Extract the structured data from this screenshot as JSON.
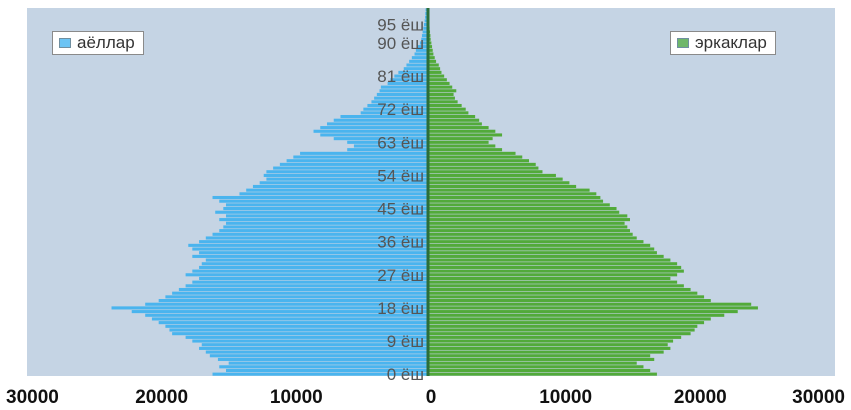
{
  "chart_data": {
    "type": "bar",
    "orientation": "horizontal",
    "layout": "population-pyramid",
    "xlim": [
      -30000,
      30000
    ],
    "x_tick_values": [
      -30000,
      -20000,
      -10000,
      0,
      10000,
      20000,
      30000
    ],
    "x_tick_labels": [
      "30000",
      "20000",
      "10000",
      "0",
      "10000",
      "20000",
      "30000"
    ],
    "age_tick_labels": [
      {
        "age": 0,
        "label": "0 ёш"
      },
      {
        "age": 9,
        "label": "9 ёш"
      },
      {
        "age": 18,
        "label": "18 ёш"
      },
      {
        "age": 27,
        "label": "27 ёш"
      },
      {
        "age": 36,
        "label": "36 ёш"
      },
      {
        "age": 45,
        "label": "45 ёш"
      },
      {
        "age": 54,
        "label": "54 ёш"
      },
      {
        "age": 63,
        "label": "63 ёш"
      },
      {
        "age": 72,
        "label": "72 ёш"
      },
      {
        "age": 81,
        "label": "81 ёш"
      },
      {
        "age": 90,
        "label": "90 ёш"
      },
      {
        "age": 95,
        "label": "95 ёш"
      }
    ],
    "ages": [
      0,
      1,
      2,
      3,
      4,
      5,
      6,
      7,
      8,
      9,
      10,
      11,
      12,
      13,
      14,
      15,
      16,
      17,
      18,
      19,
      20,
      21,
      22,
      23,
      24,
      25,
      26,
      27,
      28,
      29,
      30,
      31,
      32,
      33,
      34,
      35,
      36,
      37,
      38,
      39,
      40,
      41,
      42,
      43,
      44,
      45,
      46,
      47,
      48,
      49,
      50,
      51,
      52,
      53,
      54,
      55,
      56,
      57,
      58,
      59,
      60,
      61,
      62,
      63,
      64,
      65,
      66,
      67,
      68,
      69,
      70,
      71,
      72,
      73,
      74,
      75,
      76,
      77,
      78,
      79,
      80,
      81,
      82,
      83,
      84,
      85,
      86,
      87,
      88,
      89,
      90,
      91,
      92,
      93,
      94,
      95,
      96,
      97,
      98,
      99
    ],
    "series": [
      {
        "name": "аёллар",
        "color": "#4ab4ee",
        "side": "left",
        "values": [
          16000,
          15000,
          15500,
          14800,
          15600,
          16200,
          16500,
          17000,
          16800,
          17500,
          18000,
          19000,
          19200,
          19500,
          20000,
          20500,
          21000,
          22000,
          23500,
          21000,
          20000,
          19500,
          19000,
          18500,
          18000,
          17500,
          17000,
          18000,
          17500,
          17000,
          16800,
          16500,
          17500,
          17000,
          17500,
          17800,
          17000,
          16500,
          16000,
          15500,
          15200,
          15000,
          15500,
          15000,
          15800,
          15200,
          15000,
          15500,
          16000,
          14000,
          13500,
          13000,
          12500,
          12000,
          12200,
          12000,
          11500,
          11000,
          10500,
          10000,
          9500,
          6000,
          5500,
          6000,
          7000,
          8000,
          8500,
          8000,
          7500,
          7000,
          6500,
          5000,
          4800,
          4500,
          4200,
          4000,
          3800,
          3600,
          3500,
          3000,
          2800,
          2500,
          2200,
          1800,
          1600,
          1400,
          1200,
          1000,
          900,
          800,
          600,
          500,
          450,
          400,
          350,
          300,
          250,
          220,
          200,
          180
        ]
      },
      {
        "name": "эркаклар",
        "color": "#52aa3a",
        "side": "right",
        "values": [
          17000,
          16500,
          16000,
          15500,
          16800,
          16500,
          17500,
          18000,
          17800,
          18200,
          18800,
          19500,
          19800,
          20000,
          20500,
          21000,
          22000,
          23000,
          24500,
          24000,
          21000,
          20500,
          20000,
          19500,
          19000,
          18500,
          18000,
          18500,
          19000,
          18800,
          18500,
          18000,
          17500,
          17000,
          16800,
          16500,
          16000,
          15500,
          15200,
          15000,
          14800,
          14600,
          15000,
          14800,
          14200,
          14000,
          13500,
          13000,
          12800,
          12500,
          12000,
          11000,
          10500,
          10000,
          9500,
          8500,
          8200,
          8000,
          7500,
          7000,
          6500,
          5500,
          5000,
          4500,
          4800,
          5500,
          5000,
          4500,
          4000,
          3800,
          3500,
          3000,
          2800,
          2500,
          2200,
          2000,
          1900,
          2100,
          1800,
          1600,
          1400,
          1200,
          1000,
          900,
          800,
          600,
          500,
          400,
          350,
          300,
          250,
          200,
          180,
          150,
          120,
          100,
          80,
          70,
          60,
          50
        ]
      }
    ],
    "legend": [
      {
        "label": "аёллар",
        "placement": "top-left"
      },
      {
        "label": "эркаклар",
        "placement": "top-right"
      }
    ],
    "plot_background": "#c5d4e4",
    "grid": false
  }
}
